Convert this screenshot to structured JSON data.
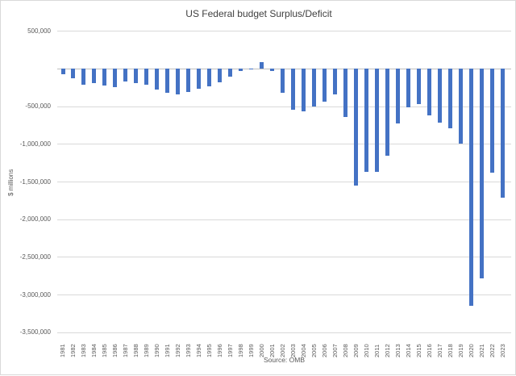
{
  "chart_data": {
    "type": "bar",
    "title": "US Federal budget Surplus/Deficit",
    "xlabel": "",
    "ylabel": "$ millions",
    "source_note": "Source: OMB",
    "legend": "none",
    "grid": "horizontal",
    "ylim": [
      -3500000,
      500000
    ],
    "ytick_interval": 500000,
    "ytick_labels": [
      "500,000",
      "",
      "-500,000",
      "-1,000,000",
      "-1,500,000",
      "-2,000,000",
      "-2,500,000",
      "-3,000,000",
      "-3,500,000"
    ],
    "bar_color": "#4472C4",
    "gridline_color": "#D9D9D9",
    "axis_text_color": "#595959",
    "title_color": "#404040",
    "categories": [
      "1981",
      "1982",
      "1983",
      "1984",
      "1985",
      "1986",
      "1987",
      "1988",
      "1989",
      "1990",
      "1991",
      "1992",
      "1993",
      "1994",
      "1995",
      "1996",
      "1997",
      "1998",
      "1999",
      "2000",
      "2001",
      "2002",
      "2003",
      "2004",
      "2005",
      "2006",
      "2007",
      "2008",
      "2009",
      "2010",
      "2011",
      "2012",
      "2013",
      "2014",
      "2015",
      "2016",
      "2017",
      "2018",
      "2019",
      "2020",
      "2021",
      "2022",
      "2023"
    ],
    "values": [
      -73940,
      -120061,
      -207692,
      -185324,
      -221529,
      -237944,
      -168399,
      -192259,
      -205229,
      -277645,
      -321403,
      -340357,
      -300345,
      -258840,
      -226367,
      -174052,
      -103248,
      -29925,
      1920,
      86422,
      -32445,
      -317417,
      -538418,
      -568022,
      -493617,
      -434498,
      -342167,
      -641760,
      -1549681,
      -1371368,
      -1366798,
      -1148856,
      -719083,
      -514132,
      -465566,
      -620204,
      -714902,
      -785260,
      -991875,
      -3142911,
      -2775343,
      -1376587,
      -1710000
    ]
  }
}
